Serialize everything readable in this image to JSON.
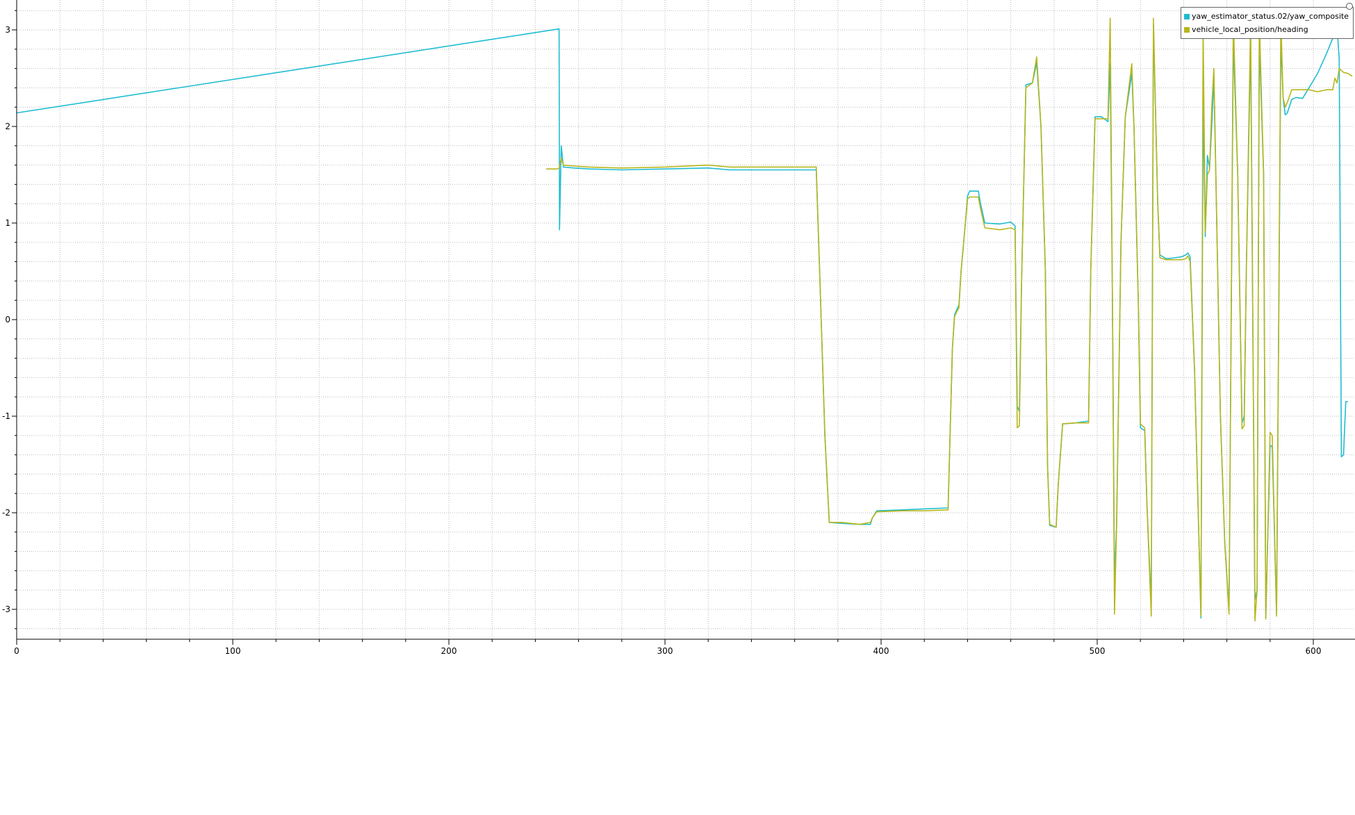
{
  "chart_data": {
    "type": "line",
    "title": "",
    "xlabel": "",
    "ylabel": "",
    "xlim": [
      0,
      620
    ],
    "ylim": [
      -3.25,
      3.2
    ],
    "x_ticks": [
      0,
      100,
      200,
      300,
      400,
      500,
      600
    ],
    "y_ticks": [
      -3,
      -2,
      -1,
      0,
      1,
      2,
      3
    ],
    "x_tick_labels": [
      "0",
      "100",
      "200",
      "300",
      "400",
      "500",
      "600"
    ],
    "y_tick_labels": [
      "-3",
      "-2",
      "-1",
      "0",
      "1",
      "2",
      "3"
    ],
    "grid": true,
    "legend_position": "top-right",
    "series": [
      {
        "name": "yaw_estimator_status.02/yaw_composite",
        "color": "#1fbcd2",
        "points": [
          [
            0,
            2.14
          ],
          [
            251,
            3.01
          ],
          [
            251.2,
            0.93
          ],
          [
            252,
            1.8
          ],
          [
            253,
            1.58
          ],
          [
            258,
            1.57
          ],
          [
            265,
            1.56
          ],
          [
            280,
            1.55
          ],
          [
            300,
            1.56
          ],
          [
            320,
            1.57
          ],
          [
            330,
            1.55
          ],
          [
            345,
            1.55
          ],
          [
            360,
            1.55
          ],
          [
            370,
            1.55
          ],
          [
            372,
            0.2
          ],
          [
            374,
            -1.2
          ],
          [
            376,
            -2.1
          ],
          [
            382,
            -2.11
          ],
          [
            390,
            -2.12
          ],
          [
            395,
            -2.12
          ],
          [
            396,
            -2.05
          ],
          [
            398,
            -1.98
          ],
          [
            410,
            -1.97
          ],
          [
            420,
            -1.96
          ],
          [
            431,
            -1.95
          ],
          [
            433,
            -0.3
          ],
          [
            434,
            0.05
          ],
          [
            435,
            0.1
          ],
          [
            436,
            0.15
          ],
          [
            437,
            0.5
          ],
          [
            439,
            1.0
          ],
          [
            440,
            1.28
          ],
          [
            441,
            1.33
          ],
          [
            445,
            1.33
          ],
          [
            446,
            1.2
          ],
          [
            448,
            1.0
          ],
          [
            455,
            0.99
          ],
          [
            460,
            1.01
          ],
          [
            462,
            0.97
          ],
          [
            463,
            -0.9
          ],
          [
            464,
            -0.95
          ],
          [
            465,
            0.4
          ],
          [
            467,
            2.43
          ],
          [
            470,
            2.45
          ],
          [
            472,
            2.66
          ],
          [
            474,
            2.0
          ],
          [
            476,
            0.5
          ],
          [
            477,
            -1.5
          ],
          [
            478,
            -2.13
          ],
          [
            481,
            -2.15
          ],
          [
            482,
            -1.7
          ],
          [
            484,
            -1.08
          ],
          [
            490,
            -1.07
          ],
          [
            496,
            -1.05
          ],
          [
            497,
            0.5
          ],
          [
            499,
            2.1
          ],
          [
            502,
            2.1
          ],
          [
            505,
            2.05
          ],
          [
            506,
            2.65
          ],
          [
            507,
            0.3
          ],
          [
            508,
            -2.71
          ],
          [
            509,
            -2.1
          ],
          [
            511,
            0.8
          ],
          [
            513,
            2.1
          ],
          [
            516,
            2.55
          ],
          [
            517,
            2.0
          ],
          [
            519,
            0.2
          ],
          [
            520,
            -1.12
          ],
          [
            522,
            -1.15
          ],
          [
            523,
            -1.9
          ],
          [
            525,
            -2.96
          ],
          [
            526,
            3.05
          ],
          [
            528,
            1.2
          ],
          [
            529,
            0.67
          ],
          [
            532,
            0.63
          ],
          [
            536,
            0.64
          ],
          [
            539,
            0.65
          ],
          [
            541,
            0.67
          ],
          [
            542,
            0.69
          ],
          [
            543,
            0.65
          ],
          [
            545,
            -0.5
          ],
          [
            548,
            -3.09
          ],
          [
            549,
            2.28
          ],
          [
            550,
            0.86
          ],
          [
            551,
            1.7
          ],
          [
            552,
            1.57
          ],
          [
            553,
            2.0
          ],
          [
            554,
            2.5
          ],
          [
            555,
            1.4
          ],
          [
            557,
            -1.0
          ],
          [
            559,
            -2.3
          ],
          [
            561,
            -3.0
          ],
          [
            563,
            2.9
          ],
          [
            565,
            1.5
          ],
          [
            567,
            -1.07
          ],
          [
            568,
            -1.0
          ],
          [
            569,
            0.5
          ],
          [
            571,
            2.9
          ],
          [
            573,
            -2.9
          ],
          [
            574,
            -2.8
          ],
          [
            575,
            2.9
          ],
          [
            577,
            1.5
          ],
          [
            578,
            -3.09
          ],
          [
            580,
            -1.3
          ],
          [
            581,
            -1.32
          ],
          [
            583,
            -3.05
          ],
          [
            585,
            2.9
          ],
          [
            586,
            2.3
          ],
          [
            587,
            2.12
          ],
          [
            588,
            2.14
          ],
          [
            590,
            2.28
          ],
          [
            592,
            2.3
          ],
          [
            595,
            2.29
          ],
          [
            598,
            2.4
          ],
          [
            602,
            2.55
          ],
          [
            606,
            2.75
          ],
          [
            611,
            3.02
          ],
          [
            612,
            2.7
          ],
          [
            613,
            -1.42
          ],
          [
            614,
            -1.4
          ],
          [
            615,
            -0.85
          ],
          [
            616,
            -0.85
          ]
        ]
      },
      {
        "name": "vehicle_local_position/heading",
        "color": "#b7b61c",
        "points": [
          [
            245,
            1.56
          ],
          [
            250,
            1.56
          ],
          [
            251,
            1.57
          ],
          [
            252,
            1.67
          ],
          [
            253,
            1.6
          ],
          [
            258,
            1.59
          ],
          [
            265,
            1.58
          ],
          [
            280,
            1.57
          ],
          [
            300,
            1.58
          ],
          [
            320,
            1.6
          ],
          [
            330,
            1.58
          ],
          [
            345,
            1.58
          ],
          [
            360,
            1.58
          ],
          [
            370,
            1.58
          ],
          [
            372,
            0.2
          ],
          [
            374,
            -1.2
          ],
          [
            376,
            -2.1
          ],
          [
            382,
            -2.1
          ],
          [
            390,
            -2.12
          ],
          [
            395,
            -2.1
          ],
          [
            396,
            -2.05
          ],
          [
            398,
            -1.99
          ],
          [
            410,
            -1.98
          ],
          [
            420,
            -1.98
          ],
          [
            431,
            -1.97
          ],
          [
            433,
            -0.3
          ],
          [
            434,
            0.03
          ],
          [
            435,
            0.08
          ],
          [
            436,
            0.12
          ],
          [
            437,
            0.5
          ],
          [
            439,
            1.0
          ],
          [
            440,
            1.25
          ],
          [
            441,
            1.27
          ],
          [
            445,
            1.27
          ],
          [
            446,
            1.15
          ],
          [
            448,
            0.95
          ],
          [
            455,
            0.93
          ],
          [
            460,
            0.95
          ],
          [
            462,
            0.93
          ],
          [
            463,
            -1.12
          ],
          [
            464,
            -1.1
          ],
          [
            465,
            0.4
          ],
          [
            467,
            2.4
          ],
          [
            470,
            2.45
          ],
          [
            472,
            2.72
          ],
          [
            474,
            2.0
          ],
          [
            476,
            0.5
          ],
          [
            477,
            -1.5
          ],
          [
            478,
            -2.12
          ],
          [
            481,
            -2.15
          ],
          [
            482,
            -1.7
          ],
          [
            484,
            -1.08
          ],
          [
            490,
            -1.07
          ],
          [
            496,
            -1.07
          ],
          [
            497,
            0.5
          ],
          [
            499,
            2.08
          ],
          [
            502,
            2.08
          ],
          [
            505,
            2.08
          ],
          [
            506,
            3.12
          ],
          [
            507,
            0.3
          ],
          [
            508,
            -3.05
          ],
          [
            509,
            -2.1
          ],
          [
            511,
            0.8
          ],
          [
            513,
            2.1
          ],
          [
            516,
            2.65
          ],
          [
            517,
            2.0
          ],
          [
            519,
            0.2
          ],
          [
            520,
            -1.08
          ],
          [
            522,
            -1.12
          ],
          [
            523,
            -1.9
          ],
          [
            525,
            -3.07
          ],
          [
            526,
            3.12
          ],
          [
            528,
            1.2
          ],
          [
            529,
            0.64
          ],
          [
            532,
            0.62
          ],
          [
            536,
            0.62
          ],
          [
            539,
            0.62
          ],
          [
            541,
            0.63
          ],
          [
            542,
            0.66
          ],
          [
            543,
            0.6
          ],
          [
            545,
            -0.5
          ],
          [
            548,
            -3.07
          ],
          [
            549,
            3.05
          ],
          [
            550,
            0.9
          ],
          [
            551,
            1.5
          ],
          [
            552,
            1.55
          ],
          [
            553,
            2.2
          ],
          [
            554,
            2.6
          ],
          [
            555,
            1.4
          ],
          [
            557,
            -1.0
          ],
          [
            559,
            -2.3
          ],
          [
            561,
            -3.05
          ],
          [
            563,
            3.12
          ],
          [
            565,
            1.5
          ],
          [
            567,
            -1.13
          ],
          [
            568,
            -1.1
          ],
          [
            569,
            0.5
          ],
          [
            571,
            3.12
          ],
          [
            573,
            -3.12
          ],
          [
            574,
            -2.8
          ],
          [
            575,
            3.12
          ],
          [
            577,
            1.5
          ],
          [
            578,
            -3.1
          ],
          [
            580,
            -1.17
          ],
          [
            581,
            -1.2
          ],
          [
            583,
            -3.07
          ],
          [
            585,
            3.12
          ],
          [
            586,
            2.3
          ],
          [
            587,
            2.2
          ],
          [
            588,
            2.25
          ],
          [
            590,
            2.38
          ],
          [
            592,
            2.38
          ],
          [
            595,
            2.38
          ],
          [
            598,
            2.38
          ],
          [
            602,
            2.36
          ],
          [
            606,
            2.38
          ],
          [
            609,
            2.38
          ],
          [
            610,
            2.5
          ],
          [
            611,
            2.45
          ],
          [
            612,
            2.6
          ],
          [
            614,
            2.56
          ],
          [
            616,
            2.55
          ],
          [
            618,
            2.52
          ]
        ]
      }
    ]
  }
}
